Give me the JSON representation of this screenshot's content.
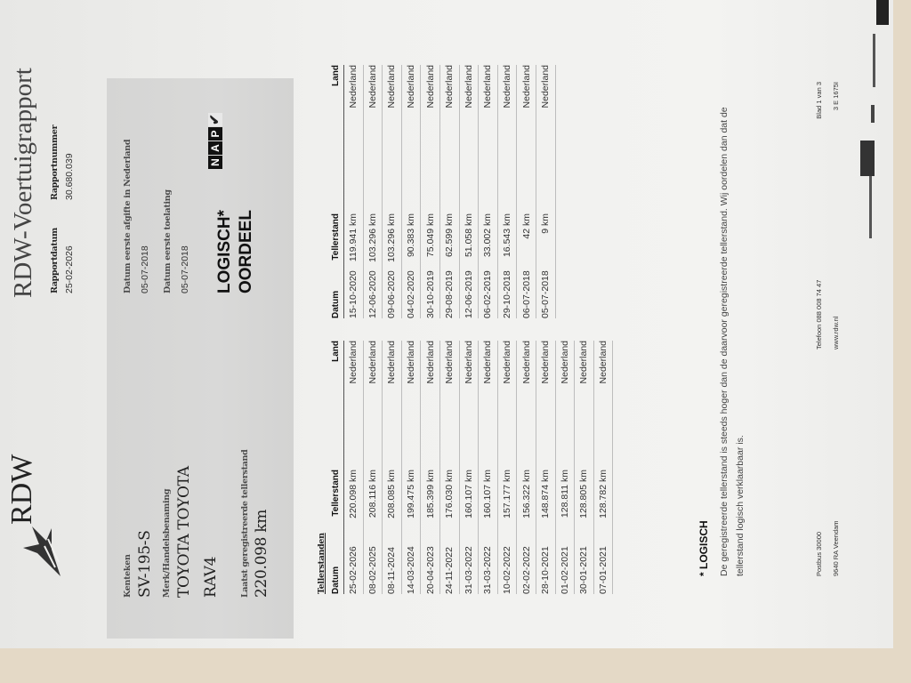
{
  "header": {
    "logo_text": "RDW",
    "title": "RDW-Voertuigrapport",
    "rapportdatum_label": "Rapportdatum",
    "rapportdatum": "25-02-2026",
    "rapportnummer_label": "Rapportnummer",
    "rapportnummer": "30.680.039"
  },
  "vehicle": {
    "kenteken_label": "Kenteken",
    "kenteken": "SV-195-S",
    "merk_label": "Merk/Handelsbenaming",
    "merk": "TOYOTA TOYOTA",
    "model": "RAV4",
    "laatst_label": "Laatst geregistreerde tellerstand",
    "laatst": "220.098 km",
    "afgifte_label": "Datum eerste afgifte in Nederland",
    "afgifte": "05-07-2018",
    "toelating_label": "Datum eerste toelating",
    "toelating": "05-07-2018",
    "oordeel_value": "LOGISCH*",
    "oordeel_label": "OORDEEL",
    "nap_logo": "NAP",
    "nap_icon": "check-icon"
  },
  "tellerstanden": {
    "title": "Tellerstanden",
    "columns": [
      "Datum",
      "Tellerstand",
      "Land"
    ],
    "left": [
      [
        "25-02-2026",
        "220.098 km",
        "Nederland"
      ],
      [
        "08-02-2025",
        "208.116 km",
        "Nederland"
      ],
      [
        "08-11-2024",
        "208.085 km",
        "Nederland"
      ],
      [
        "14-03-2024",
        "199.475 km",
        "Nederland"
      ],
      [
        "20-04-2023",
        "185.399 km",
        "Nederland"
      ],
      [
        "24-11-2022",
        "176.030 km",
        "Nederland"
      ],
      [
        "31-03-2022",
        "160.107 km",
        "Nederland"
      ],
      [
        "31-03-2022",
        "160.107 km",
        "Nederland"
      ],
      [
        "10-02-2022",
        "157.177 km",
        "Nederland"
      ],
      [
        "02-02-2022",
        "156.322 km",
        "Nederland"
      ],
      [
        "28-10-2021",
        "148.874 km",
        "Nederland"
      ],
      [
        "01-02-2021",
        "128.811 km",
        "Nederland"
      ],
      [
        "30-01-2021",
        "128.805 km",
        "Nederland"
      ],
      [
        "07-01-2021",
        "128.782 km",
        "Nederland"
      ]
    ],
    "right": [
      [
        "15-10-2020",
        "119.941 km",
        "Nederland"
      ],
      [
        "12-06-2020",
        "103.296 km",
        "Nederland"
      ],
      [
        "09-06-2020",
        "103.296 km",
        "Nederland"
      ],
      [
        "04-02-2020",
        "90.383 km",
        "Nederland"
      ],
      [
        "30-10-2019",
        "75.049 km",
        "Nederland"
      ],
      [
        "29-08-2019",
        "62.599 km",
        "Nederland"
      ],
      [
        "12-06-2019",
        "51.058 km",
        "Nederland"
      ],
      [
        "06-02-2019",
        "33.002 km",
        "Nederland"
      ],
      [
        "29-10-2018",
        "16.543 km",
        "Nederland"
      ],
      [
        "06-07-2018",
        "42 km",
        "Nederland"
      ],
      [
        "05-07-2018",
        "9 km",
        "Nederland"
      ]
    ]
  },
  "note": {
    "title": "* LOGISCH",
    "line1": "De geregistreerde tellerstand is steeds hoger dan de daarvoor geregistreerde tellerstand. Wij oordelen dan dat de",
    "line2": "tellerstand logisch verklaarbaar is."
  },
  "footer": {
    "postbus": "Postbus 30000",
    "plaats": "9640 RA Veendam",
    "telefoon": "Telefoon 088 008 74 47",
    "website": "www.rdw.nl",
    "blad": "Blad 1 van 3",
    "code": "3 E 1675I"
  }
}
